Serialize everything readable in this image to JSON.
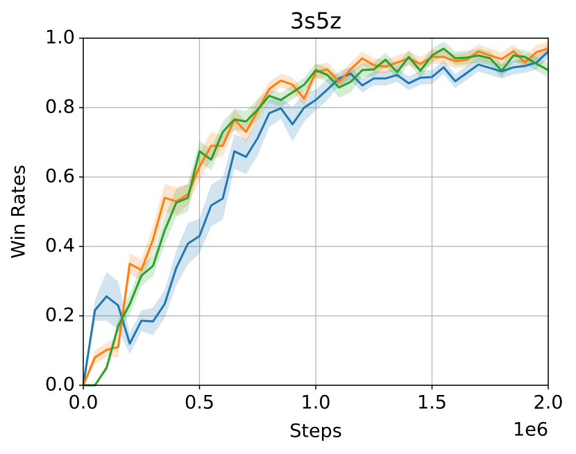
{
  "chart_data": {
    "type": "line",
    "title": "3s5z",
    "xlabel": "Steps",
    "ylabel": "Win Rates",
    "x_offset_label": "1e6",
    "x": [
      0,
      0.05,
      0.1,
      0.15,
      0.2,
      0.25,
      0.3,
      0.35,
      0.4,
      0.45,
      0.5,
      0.55,
      0.6,
      0.65,
      0.7,
      0.75,
      0.8,
      0.85,
      0.9,
      0.95,
      1.0,
      1.05,
      1.1,
      1.15,
      1.2,
      1.25,
      1.3,
      1.35,
      1.4,
      1.45,
      1.5,
      1.55,
      1.6,
      1.65,
      1.7,
      1.75,
      1.8,
      1.85,
      1.9,
      1.95,
      2.0
    ],
    "series": [
      {
        "color": "#1f77b4",
        "values": [
          0,
          0.216,
          0.256,
          0.23,
          0.12,
          0.186,
          0.184,
          0.234,
          0.338,
          0.408,
          0.43,
          0.518,
          0.538,
          0.674,
          0.658,
          0.712,
          0.784,
          0.798,
          0.752,
          0.8,
          0.822,
          0.852,
          0.884,
          0.898,
          0.864,
          0.884,
          0.884,
          0.894,
          0.87,
          0.886,
          0.888,
          0.916,
          0.876,
          0.9,
          0.924,
          0.914,
          0.904,
          0.916,
          0.92,
          0.93,
          0.962
        ],
        "band": [
          0,
          0.03,
          0.07,
          0.07,
          0.03,
          0.03,
          0.04,
          0.04,
          0.05,
          0.06,
          0.05,
          0.06,
          0.06,
          0.05,
          0.05,
          0.05,
          0.04,
          0.03,
          0.05,
          0.04,
          0.03,
          0.03,
          0.02,
          0.02,
          0.02,
          0.02,
          0.02,
          0.02,
          0.02,
          0.02,
          0.02,
          0.02,
          0.02,
          0.02,
          0.02,
          0.02,
          0.02,
          0.02,
          0.02,
          0.02,
          0.02
        ]
      },
      {
        "color": "#ff7f0e",
        "values": [
          0,
          0.08,
          0.102,
          0.11,
          0.35,
          0.332,
          0.42,
          0.54,
          0.53,
          0.55,
          0.63,
          0.69,
          0.69,
          0.766,
          0.73,
          0.79,
          0.854,
          0.878,
          0.866,
          0.826,
          0.902,
          0.91,
          0.874,
          0.91,
          0.942,
          0.922,
          0.918,
          0.93,
          0.942,
          0.926,
          0.946,
          0.946,
          0.934,
          0.938,
          0.962,
          0.95,
          0.94,
          0.962,
          0.93,
          0.96,
          0.97
        ],
        "band": [
          0,
          0.02,
          0.02,
          0.03,
          0.03,
          0.03,
          0.04,
          0.04,
          0.04,
          0.03,
          0.04,
          0.04,
          0.03,
          0.03,
          0.03,
          0.03,
          0.02,
          0.02,
          0.02,
          0.02,
          0.02,
          0.02,
          0.02,
          0.02,
          0.02,
          0.02,
          0.02,
          0.02,
          0.02,
          0.02,
          0.02,
          0.02,
          0.02,
          0.02,
          0.02,
          0.02,
          0.02,
          0.02,
          0.02,
          0.02,
          0.02
        ]
      },
      {
        "color": "#2ca02c",
        "values": [
          0,
          0,
          0.05,
          0.17,
          0.234,
          0.316,
          0.344,
          0.446,
          0.526,
          0.54,
          0.674,
          0.65,
          0.73,
          0.766,
          0.76,
          0.794,
          0.834,
          0.822,
          0.844,
          0.866,
          0.908,
          0.894,
          0.858,
          0.874,
          0.908,
          0.91,
          0.938,
          0.902,
          0.946,
          0.906,
          0.95,
          0.97,
          0.942,
          0.944,
          0.95,
          0.942,
          0.906,
          0.95,
          0.946,
          0.926,
          0.908
        ],
        "band": [
          0,
          0,
          0.01,
          0.02,
          0.03,
          0.03,
          0.03,
          0.04,
          0.04,
          0.04,
          0.03,
          0.03,
          0.03,
          0.03,
          0.03,
          0.03,
          0.02,
          0.02,
          0.02,
          0.02,
          0.02,
          0.02,
          0.03,
          0.03,
          0.02,
          0.02,
          0.02,
          0.02,
          0.02,
          0.02,
          0.02,
          0.02,
          0.02,
          0.02,
          0.02,
          0.02,
          0.02,
          0.02,
          0.02,
          0.02,
          0.02
        ]
      }
    ],
    "xlim": [
      0,
      2
    ],
    "ylim": [
      0,
      1
    ],
    "xticks": [
      {
        "value": 0,
        "label": "0.0"
      },
      {
        "value": 0.5,
        "label": "0.5"
      },
      {
        "value": 1,
        "label": "1.0"
      },
      {
        "value": 1.5,
        "label": "1.5"
      },
      {
        "value": 2,
        "label": "2.0"
      }
    ],
    "yticks": [
      {
        "value": 0,
        "label": "0.0"
      },
      {
        "value": 0.2,
        "label": "0.2"
      },
      {
        "value": 0.4,
        "label": "0.4"
      },
      {
        "value": 0.6,
        "label": "0.6"
      },
      {
        "value": 0.8,
        "label": "0.8"
      },
      {
        "value": 1,
        "label": "1.0"
      }
    ],
    "grid": true
  }
}
